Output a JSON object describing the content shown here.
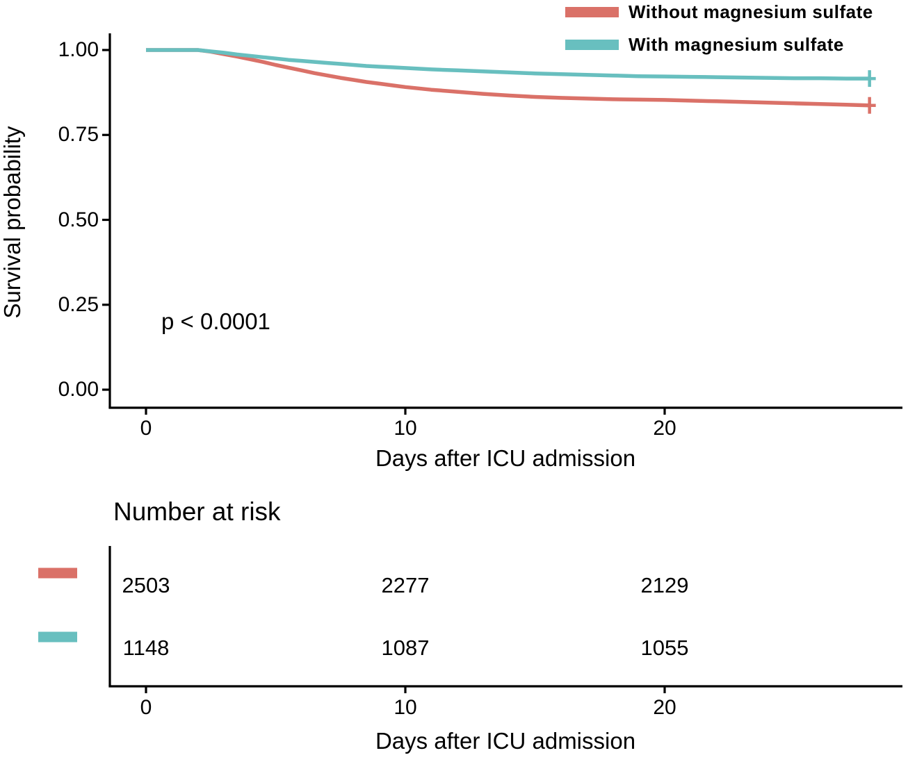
{
  "colors": {
    "without_mgso4": "#DA7168",
    "with_mgso4": "#68BFBF",
    "axis": "#000000",
    "text": "#000000",
    "background": "#ffffff"
  },
  "legend": {
    "items": [
      {
        "label": "Without magnesium sulfate",
        "color": "#DA7168"
      },
      {
        "label": "With magnesium sulfate",
        "color": "#68BFBF"
      }
    ]
  },
  "annotations": {
    "p_value": "p < 0.0001"
  },
  "chart_data": {
    "type": "line",
    "subtype": "kaplan-meier-survival",
    "title": "",
    "xlabel": "Days after ICU admission",
    "ylabel": "Survival probability",
    "xlim": [
      0,
      29
    ],
    "ylim": [
      0,
      1.0
    ],
    "x_ticks": [
      0,
      10,
      20
    ],
    "x_tick_labels": [
      "0",
      "10",
      "20"
    ],
    "y_ticks": [
      1.0,
      0.75,
      0.5,
      0.25,
      0.0
    ],
    "y_tick_labels": [
      "1.00",
      "0.75",
      "0.50",
      "0.25",
      "0.00"
    ],
    "grid": false,
    "legend_position": "top-right",
    "p_value": "p < 0.0001",
    "series": [
      {
        "name": "Without magnesium sulfate",
        "color": "#DA7168",
        "censor_mark_at_end": true,
        "points": [
          [
            0,
            1.0
          ],
          [
            2,
            1.0
          ],
          [
            2.5,
            0.995
          ],
          [
            3,
            0.988
          ],
          [
            3.5,
            0.981
          ],
          [
            4,
            0.973
          ],
          [
            4.5,
            0.965
          ],
          [
            5,
            0.956
          ],
          [
            5.5,
            0.948
          ],
          [
            6,
            0.94
          ],
          [
            6.5,
            0.932
          ],
          [
            7,
            0.925
          ],
          [
            7.5,
            0.918
          ],
          [
            8,
            0.912
          ],
          [
            8.5,
            0.906
          ],
          [
            9,
            0.901
          ],
          [
            9.5,
            0.896
          ],
          [
            10,
            0.891
          ],
          [
            11,
            0.883
          ],
          [
            12,
            0.877
          ],
          [
            13,
            0.871
          ],
          [
            14,
            0.866
          ],
          [
            15,
            0.862
          ],
          [
            16,
            0.859
          ],
          [
            17,
            0.857
          ],
          [
            18,
            0.855
          ],
          [
            19,
            0.854
          ],
          [
            20,
            0.853
          ],
          [
            21,
            0.851
          ],
          [
            22,
            0.849
          ],
          [
            23,
            0.847
          ],
          [
            24,
            0.845
          ],
          [
            25,
            0.843
          ],
          [
            26,
            0.841
          ],
          [
            27,
            0.839
          ],
          [
            27.9,
            0.837
          ]
        ]
      },
      {
        "name": "With magnesium sulfate",
        "color": "#68BFBF",
        "censor_mark_at_end": true,
        "points": [
          [
            0,
            1.0
          ],
          [
            2,
            1.0
          ],
          [
            2.5,
            0.996
          ],
          [
            3,
            0.992
          ],
          [
            3.5,
            0.987
          ],
          [
            4,
            0.983
          ],
          [
            4.5,
            0.979
          ],
          [
            5,
            0.975
          ],
          [
            5.5,
            0.971
          ],
          [
            6,
            0.968
          ],
          [
            6.5,
            0.965
          ],
          [
            7,
            0.962
          ],
          [
            7.5,
            0.959
          ],
          [
            8,
            0.956
          ],
          [
            8.5,
            0.953
          ],
          [
            9,
            0.951
          ],
          [
            9.5,
            0.949
          ],
          [
            10,
            0.947
          ],
          [
            11,
            0.943
          ],
          [
            12,
            0.94
          ],
          [
            13,
            0.937
          ],
          [
            14,
            0.934
          ],
          [
            15,
            0.931
          ],
          [
            16,
            0.929
          ],
          [
            17,
            0.927
          ],
          [
            18,
            0.925
          ],
          [
            19,
            0.923
          ],
          [
            20,
            0.922
          ],
          [
            21,
            0.921
          ],
          [
            22,
            0.92
          ],
          [
            23,
            0.919
          ],
          [
            24,
            0.918
          ],
          [
            25,
            0.917
          ],
          [
            26,
            0.917
          ],
          [
            27,
            0.916
          ],
          [
            27.9,
            0.916
          ]
        ]
      }
    ],
    "risk_table": {
      "title": "Number at risk",
      "xlabel": "Days after ICU admission",
      "x_ticks": [
        0,
        10,
        20
      ],
      "x_tick_labels": [
        "0",
        "10",
        "20"
      ],
      "rows": [
        {
          "name": "Without magnesium sulfate",
          "color": "#DA7168",
          "counts": [
            "2503",
            "2277",
            "2129"
          ]
        },
        {
          "name": "With magnesium sulfate",
          "color": "#68BFBF",
          "counts": [
            "1148",
            "1087",
            "1055"
          ]
        }
      ]
    }
  }
}
